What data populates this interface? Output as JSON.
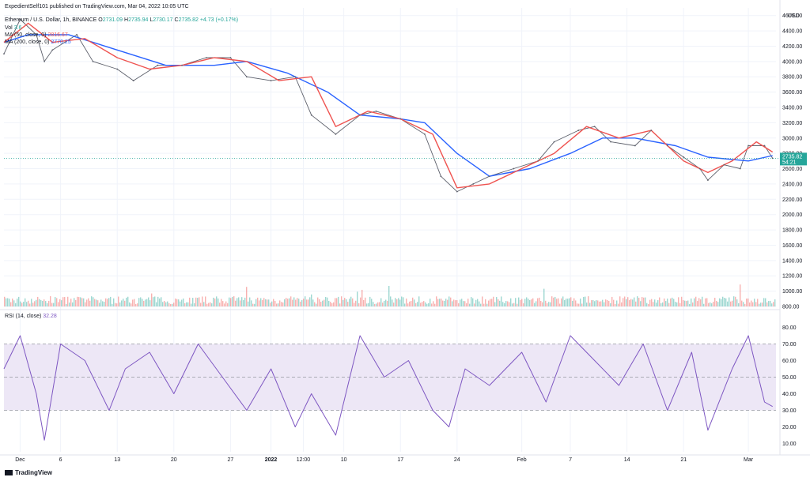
{
  "header": {
    "publisher": "ExpedientSelf101 published on TradingView.com, Mar 04, 2022 10:05 UTC",
    "symbol": "Ethereum / U.S. Dollar, 1h, BINANCE",
    "ohlc": {
      "o_label": "O",
      "o": "2731.09",
      "h_label": "H",
      "h": "2735.94",
      "l_label": "L",
      "l": "2730.17",
      "c_label": "C",
      "c": "2735.82",
      "change": "+4.73 (+0.17%)"
    },
    "vol": {
      "label": "Vol",
      "value": "3.6"
    },
    "ma50": {
      "label": "MA (50, close, 0)",
      "value": "2816.67"
    },
    "ma200": {
      "label": "MA (200, close, 0)",
      "value": "2770.25"
    }
  },
  "rsi_header": {
    "label": "RSI (14, close)",
    "value": "32.28"
  },
  "price_axis": {
    "currency": "USD",
    "last_price": "2735.82",
    "countdown": "54:21"
  },
  "branding": {
    "logo": "TradingView"
  },
  "colors": {
    "up": "#26a69a",
    "down": "#ef5350",
    "ma50": "#ef5350",
    "ma200": "#2962ff",
    "rsi": "#7e57c2",
    "rsi_band": "#ede7f6"
  },
  "chart_data": [
    {
      "type": "line",
      "title": "Ethereum / U.S. Dollar, 1h, BINANCE",
      "ylabel": "USD",
      "ylim": [
        800,
        4700
      ],
      "y_ticks": [
        "800.00",
        "1000.00",
        "1200.00",
        "1400.00",
        "1600.00",
        "1800.00",
        "2000.00",
        "2200.00",
        "2400.00",
        "2600.00",
        "2800.00",
        "3000.00",
        "3200.00",
        "3400.00",
        "3600.00",
        "3800.00",
        "4000.00",
        "4200.00",
        "4400.00",
        "4600.00"
      ],
      "x_ticks": [
        "Dec",
        "6",
        "13",
        "20",
        "27",
        "2022",
        "12:00",
        "10",
        "17",
        "24",
        "Feb",
        "7",
        "14",
        "21",
        "Mar"
      ],
      "series": [
        {
          "name": "Close",
          "x": [
            "Nov 29",
            "Dec 1",
            "Dec 3",
            "Dec 4",
            "Dec 5",
            "Dec 8",
            "Dec 10",
            "Dec 13",
            "Dec 15",
            "Dec 18",
            "Dec 21",
            "Dec 24",
            "Dec 27",
            "Dec 29",
            "Jan 1",
            "Jan 4",
            "Jan 6",
            "Jan 9",
            "Jan 12",
            "Jan 14",
            "Jan 17",
            "Jan 20",
            "Jan 22",
            "Jan 24",
            "Jan 26",
            "Jan 28",
            "Jan 31",
            "Feb 3",
            "Feb 5",
            "Feb 8",
            "Feb 10",
            "Feb 12",
            "Feb 15",
            "Feb 17",
            "Feb 19",
            "Feb 21",
            "Feb 23",
            "Feb 24",
            "Feb 26",
            "Feb 28",
            "Mar 1",
            "Mar 3",
            "Mar 4"
          ],
          "values": [
            4100,
            4550,
            4350,
            4000,
            4150,
            4350,
            4000,
            3900,
            3750,
            3950,
            3950,
            4050,
            4050,
            3800,
            3750,
            3800,
            3300,
            3050,
            3300,
            3350,
            3250,
            3050,
            2500,
            2300,
            2400,
            2500,
            2600,
            2700,
            2950,
            3100,
            3150,
            2950,
            2900,
            3100,
            2900,
            2750,
            2600,
            2450,
            2650,
            2600,
            2900,
            2900,
            2735.82
          ]
        },
        {
          "name": "MA (50, close, 0)",
          "x": [
            "Nov 29",
            "Dec 2",
            "Dec 5",
            "Dec 9",
            "Dec 13",
            "Dec 17",
            "Dec 21",
            "Dec 25",
            "Dec 29",
            "Jan 2",
            "Jan 6",
            "Jan 9",
            "Jan 13",
            "Jan 17",
            "Jan 21",
            "Jan 24",
            "Jan 28",
            "Feb 1",
            "Feb 5",
            "Feb 9",
            "Feb 13",
            "Feb 17",
            "Feb 21",
            "Feb 24",
            "Feb 27",
            "Mar 2",
            "Mar 4"
          ],
          "values": [
            4250,
            4500,
            4250,
            4300,
            4050,
            3900,
            3950,
            4050,
            4000,
            3750,
            3800,
            3150,
            3350,
            3250,
            3050,
            2350,
            2400,
            2600,
            2800,
            3150,
            3000,
            3100,
            2700,
            2550,
            2700,
            2950,
            2816.67
          ]
        },
        {
          "name": "MA (200, close, 0)",
          "x": [
            "Nov 29",
            "Dec 2",
            "Dec 7",
            "Dec 13",
            "Dec 19",
            "Dec 25",
            "Dec 29",
            "Jan 3",
            "Jan 8",
            "Jan 12",
            "Jan 17",
            "Jan 20",
            "Jan 24",
            "Jan 28",
            "Feb 2",
            "Feb 7",
            "Feb 11",
            "Feb 15",
            "Feb 20",
            "Feb 24",
            "Mar 1",
            "Mar 4"
          ],
          "values": [
            4250,
            4350,
            4350,
            4150,
            3950,
            3950,
            4000,
            3850,
            3600,
            3300,
            3250,
            3200,
            2800,
            2500,
            2600,
            2800,
            3000,
            3000,
            2900,
            2750,
            2700,
            2770.25
          ]
        }
      ],
      "volume": {
        "label": "Vol",
        "ylim": [
          0,
          1600
        ]
      }
    },
    {
      "type": "line",
      "title": "RSI (14, close)",
      "ylim": [
        5,
        85
      ],
      "y_ticks": [
        "10.00",
        "20.00",
        "30.00",
        "40.00",
        "50.00",
        "60.00",
        "70.00",
        "80.00"
      ],
      "bands": [
        30,
        50,
        70
      ],
      "series": [
        {
          "name": "RSI (14, close)",
          "x": [
            "Nov 29",
            "Dec 1",
            "Dec 3",
            "Dec 4",
            "Dec 6",
            "Dec 9",
            "Dec 12",
            "Dec 14",
            "Dec 17",
            "Dec 20",
            "Dec 23",
            "Dec 26",
            "Dec 29",
            "Jan 1",
            "Jan 4",
            "Jan 6",
            "Jan 9",
            "Jan 12",
            "Jan 15",
            "Jan 18",
            "Jan 21",
            "Jan 23",
            "Jan 25",
            "Jan 28",
            "Feb 1",
            "Feb 4",
            "Feb 7",
            "Feb 10",
            "Feb 13",
            "Feb 16",
            "Feb 19",
            "Feb 22",
            "Feb 24",
            "Feb 27",
            "Mar 1",
            "Mar 3",
            "Mar 4"
          ],
          "values": [
            55,
            75,
            40,
            12,
            70,
            60,
            30,
            55,
            65,
            40,
            70,
            50,
            30,
            55,
            20,
            40,
            15,
            75,
            50,
            60,
            30,
            20,
            55,
            45,
            65,
            35,
            75,
            60,
            45,
            70,
            30,
            65,
            18,
            55,
            75,
            35,
            32.28
          ]
        }
      ]
    }
  ]
}
